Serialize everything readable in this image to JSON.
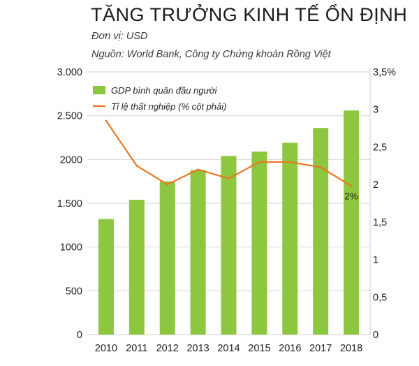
{
  "header": {
    "title": "TĂNG TRƯỞNG KINH TẾ ỔN ĐỊNH",
    "unit": "Đơn vị: USD",
    "source": "Nguồn: World Bank, Công ty Chứng khoán Rồng Việt"
  },
  "chart_data": {
    "type": "bar",
    "categories": [
      "2010",
      "2011",
      "2012",
      "2013",
      "2014",
      "2015",
      "2016",
      "2017",
      "2018"
    ],
    "series": [
      {
        "name": "GDP bình quân đầu người",
        "type": "bar",
        "axis": "left",
        "color": "#8dc63f",
        "values": [
          1320,
          1540,
          1750,
          1880,
          2040,
          2090,
          2190,
          2360,
          2560
        ]
      },
      {
        "name": "Tỉ lệ thất nghiệp (% cột phải)",
        "type": "line",
        "axis": "right",
        "color": "#e87722",
        "values": [
          2.85,
          2.25,
          2.0,
          2.2,
          2.08,
          2.3,
          2.3,
          2.23,
          1.98
        ]
      }
    ],
    "y_left": {
      "ylim": [
        0,
        3000
      ],
      "ticks": [
        0,
        500,
        1000,
        1500,
        2000,
        2500,
        3000
      ],
      "tick_labels": [
        "0",
        "500",
        "1000",
        "1.500",
        "2000",
        "2.500",
        "3.000"
      ]
    },
    "y_right": {
      "ylim": [
        0,
        3.5
      ],
      "ticks": [
        0,
        0.5,
        1,
        1.5,
        2,
        2.5,
        3,
        3.5
      ],
      "tick_labels": [
        "0",
        "0,5",
        "1",
        "1,5",
        "2",
        "2,5",
        "3",
        "3,5%"
      ]
    },
    "annotations": [
      {
        "category": "2018",
        "series": "Tỉ lệ thất nghiệp (% cột phải)",
        "text": "2%"
      }
    ],
    "grid": "horizontal",
    "legend": "top-left"
  }
}
